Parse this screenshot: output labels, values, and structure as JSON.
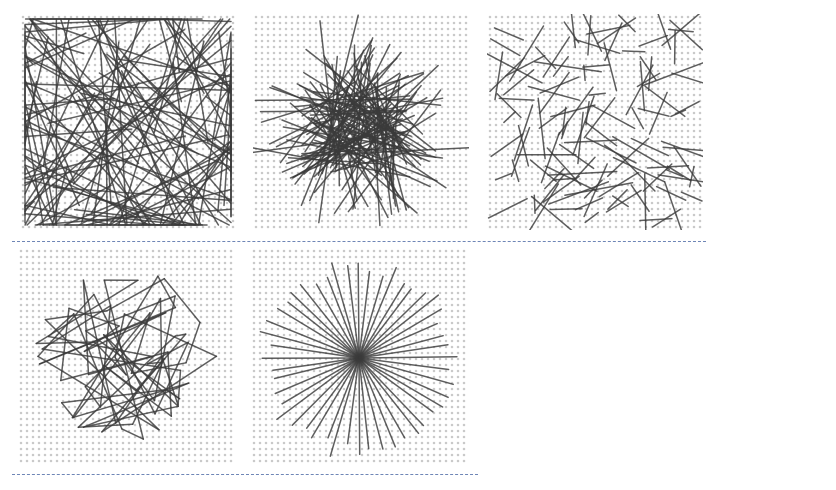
{
  "figure": {
    "background_color": "#ffffff",
    "dot_color": "#c9c9c9",
    "stroke_color": "#3a3a3a",
    "divider_color": "#6f86b6",
    "rows": [
      {
        "tiles": [
          {
            "id": "panel-1",
            "pattern": "random-lines-dense",
            "line_count": 140,
            "stroke_opacity": 0.82,
            "seed": 11
          },
          {
            "id": "panel-2",
            "pattern": "random-lines-clustered",
            "line_count": 120,
            "stroke_opacity": 0.82,
            "seed": 27
          },
          {
            "id": "panel-3",
            "pattern": "random-short-lines",
            "line_count": 120,
            "stroke_opacity": 0.82,
            "seed": 43
          }
        ]
      },
      {
        "tiles": [
          {
            "id": "panel-4",
            "pattern": "closed-random-polyline",
            "line_count": 70,
            "stroke_opacity": 0.82,
            "seed": 59
          },
          {
            "id": "panel-5",
            "pattern": "radial-burst",
            "line_count": 48,
            "stroke_opacity": 0.82,
            "seed": 71
          }
        ]
      }
    ]
  }
}
